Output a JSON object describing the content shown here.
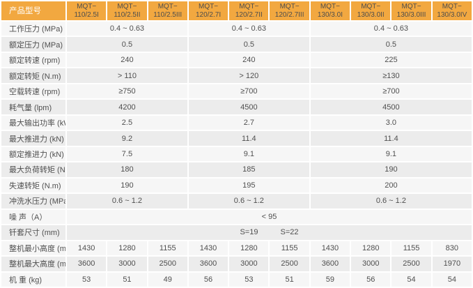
{
  "colors": {
    "header_bg": "#F2A840",
    "header_label_text": "#FFFFFF",
    "header_model_text": "#4D4D4D",
    "row_light": "#F6F6F6",
    "row_dark": "#ECECEC",
    "cell_text": "#4F4F4F",
    "gap": "#FFFFFF"
  },
  "chart_data": {
    "type": "table",
    "header": {
      "label": "产品型号",
      "models": [
        {
          "name": "MQT-110/2.5I",
          "line1": "MQT−",
          "line2": "110/2.5I"
        },
        {
          "name": "MQT-110/2.5II",
          "line1": "MQT−",
          "line2": "110/2.5II"
        },
        {
          "name": "MQT-110/2.5III",
          "line1": "MQT−",
          "line2": "110/2.5III"
        },
        {
          "name": "MQT-120/2.7I",
          "line1": "MQT−",
          "line2": "120/2.7I"
        },
        {
          "name": "MQT-120/2.7II",
          "line1": "MQT−",
          "line2": "120/2.7II"
        },
        {
          "name": "MQT-120/2.7III",
          "line1": "MQT−",
          "line2": "120/2.7III"
        },
        {
          "name": "MQT-130/3.0I",
          "line1": "MQT−",
          "line2": "130/3.0I"
        },
        {
          "name": "MQT-130/3.0II",
          "line1": "MQT−",
          "line2": "130/3.0II"
        },
        {
          "name": "MQT-130/3.0III",
          "line1": "MQT−",
          "line2": "130/3.0III"
        },
        {
          "name": "MQT-130/3.0IV",
          "line1": "MQT−",
          "line2": "130/3.0IV"
        }
      ]
    },
    "rows": [
      {
        "label": "工作压力 (MPa)",
        "cells": [
          {
            "text": "0.4 ~ 0.63",
            "span": 3
          },
          {
            "text": "0.4 ~ 0.63",
            "span": 3
          },
          {
            "text": "0.4 ~ 0.63",
            "span": 4
          }
        ]
      },
      {
        "label": "额定压力 (MPa)",
        "cells": [
          {
            "text": "0.5",
            "span": 3
          },
          {
            "text": "0.5",
            "span": 3
          },
          {
            "text": "0.5",
            "span": 4
          }
        ]
      },
      {
        "label": "额定转速 (rpm)",
        "cells": [
          {
            "text": "240",
            "span": 3
          },
          {
            "text": "240",
            "span": 3
          },
          {
            "text": "225",
            "span": 4
          }
        ]
      },
      {
        "label": "额定转矩 (N.m)",
        "cells": [
          {
            "text": "> 110",
            "span": 3
          },
          {
            "text": "> 120",
            "span": 3
          },
          {
            "text": "≥130",
            "span": 4
          }
        ]
      },
      {
        "label": "空载转速 (rpm)",
        "cells": [
          {
            "text": "≥750",
            "span": 3
          },
          {
            "text": "≥700",
            "span": 3
          },
          {
            "text": "≥700",
            "span": 4
          }
        ]
      },
      {
        "label": "耗气量 (lpm)",
        "cells": [
          {
            "text": "4200",
            "span": 3
          },
          {
            "text": "4500",
            "span": 3
          },
          {
            "text": "4500",
            "span": 4
          }
        ]
      },
      {
        "label": "最大输出功率 (kW)",
        "cells": [
          {
            "text": "2.5",
            "span": 3
          },
          {
            "text": "2.7",
            "span": 3
          },
          {
            "text": "3.0",
            "span": 4
          }
        ]
      },
      {
        "label": "最大推进力 (kN)",
        "cells": [
          {
            "text": "9.2",
            "span": 3
          },
          {
            "text": "11.4",
            "span": 3
          },
          {
            "text": "11.4",
            "span": 4
          }
        ]
      },
      {
        "label": "额定推进力 (kN)",
        "cells": [
          {
            "text": "7.5",
            "span": 3
          },
          {
            "text": "9.1",
            "span": 3
          },
          {
            "text": "9.1",
            "span": 4
          }
        ]
      },
      {
        "label": "最大负荷转矩  (N.m)",
        "cells": [
          {
            "text": "180",
            "span": 3
          },
          {
            "text": "185",
            "span": 3
          },
          {
            "text": "190",
            "span": 4
          }
        ]
      },
      {
        "label": "失速转矩 (N.m)",
        "cells": [
          {
            "text": "190",
            "span": 3
          },
          {
            "text": "195",
            "span": 3
          },
          {
            "text": "200",
            "span": 4
          }
        ]
      },
      {
        "label": "冲洗水压力 (MPa)",
        "cells": [
          {
            "text": "0.6 ~ 1.2",
            "span": 3
          },
          {
            "text": "0.6 ~ 1.2",
            "span": 3
          },
          {
            "text": "0.6 ~ 1.2",
            "span": 4
          }
        ]
      },
      {
        "label": "噪 声（A）",
        "cells": [
          {
            "text": "< 95",
            "span": 10
          }
        ]
      },
      {
        "label": "钎套尺寸 (mm)",
        "cells": [
          {
            "text": "",
            "span": 10
          }
        ],
        "positioned_values": [
          {
            "text": "S=19",
            "column": "MQT-120/2.7II",
            "col_index": 5
          },
          {
            "text": "S=22",
            "column": "MQT-120/2.7III",
            "col_index": 6
          }
        ]
      },
      {
        "label": "整机最小高度 (mm)",
        "cells": [
          {
            "text": "1430",
            "span": 1
          },
          {
            "text": "1280",
            "span": 1
          },
          {
            "text": "1155",
            "span": 1
          },
          {
            "text": "1430",
            "span": 1
          },
          {
            "text": "1280",
            "span": 1
          },
          {
            "text": "1155",
            "span": 1
          },
          {
            "text": "1430",
            "span": 1
          },
          {
            "text": "1280",
            "span": 1
          },
          {
            "text": "1155",
            "span": 1
          },
          {
            "text": "830",
            "span": 1
          }
        ]
      },
      {
        "label": "整机最大高度 (mm)",
        "cells": [
          {
            "text": "3600",
            "span": 1
          },
          {
            "text": "3000",
            "span": 1
          },
          {
            "text": "2500",
            "span": 1
          },
          {
            "text": "3600",
            "span": 1
          },
          {
            "text": "3000",
            "span": 1
          },
          {
            "text": "2500",
            "span": 1
          },
          {
            "text": "3600",
            "span": 1
          },
          {
            "text": "3000",
            "span": 1
          },
          {
            "text": "2500",
            "span": 1
          },
          {
            "text": "1970",
            "span": 1
          }
        ]
      },
      {
        "label": "机 重 (kg)",
        "cells": [
          {
            "text": "53",
            "span": 1
          },
          {
            "text": "51",
            "span": 1
          },
          {
            "text": "49",
            "span": 1
          },
          {
            "text": "56",
            "span": 1
          },
          {
            "text": "53",
            "span": 1
          },
          {
            "text": "51",
            "span": 1
          },
          {
            "text": "59",
            "span": 1
          },
          {
            "text": "56",
            "span": 1
          },
          {
            "text": "54",
            "span": 1
          },
          {
            "text": "54",
            "span": 1
          }
        ]
      }
    ]
  }
}
